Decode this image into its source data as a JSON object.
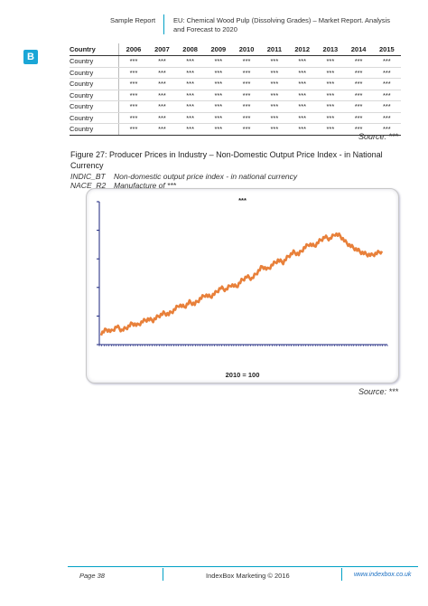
{
  "header": {
    "left": "Sample Report",
    "right_line1": "EU: Chemical Wood Pulp (Dissolving Grades) – Market Report. Analysis",
    "right_line2": "and Forecast to 2020"
  },
  "logo_text": "B",
  "table": {
    "columns": [
      "Country",
      "2006",
      "2007",
      "2008",
      "2009",
      "2010",
      "2011",
      "2012",
      "2013",
      "2014",
      "2015"
    ],
    "rows": [
      [
        "Country",
        "***",
        "***",
        "***",
        "***",
        "***",
        "***",
        "***",
        "***",
        "***",
        "***"
      ],
      [
        "Country",
        "***",
        "***",
        "***",
        "***",
        "***",
        "***",
        "***",
        "***",
        "***",
        "***"
      ],
      [
        "Country",
        "***",
        "***",
        "***",
        "***",
        "***",
        "***",
        "***",
        "***",
        "***",
        "***"
      ],
      [
        "Country",
        "***",
        "***",
        "***",
        "***",
        "***",
        "***",
        "***",
        "***",
        "***",
        "***"
      ],
      [
        "Country",
        "***",
        "***",
        "***",
        "***",
        "***",
        "***",
        "***",
        "***",
        "***",
        "***"
      ],
      [
        "Country",
        "***",
        "***",
        "***",
        "***",
        "***",
        "***",
        "***",
        "***",
        "***",
        "***"
      ],
      [
        "Country",
        "***",
        "***",
        "***",
        "***",
        "***",
        "***",
        "***",
        "***",
        "***",
        "***"
      ]
    ]
  },
  "source1": "Source:  ***",
  "figure_caption": "Figure 27: Producer Prices in Industry – Non-Domestic Output Price Index - in National Currency",
  "meta": {
    "k1": "INDIC_BT",
    "v1": "Non-domestic output price index - in national currency",
    "k2": "NACE_R2",
    "v2": "Manufacture of ***"
  },
  "chart_data": {
    "type": "line",
    "title": "***",
    "xlabel": "2010 = 100",
    "ylabel": "",
    "line_color": "#e8803a",
    "series": [
      {
        "values": [
          2,
          6,
          4,
          9,
          5,
          8,
          12,
          10,
          14,
          16,
          15,
          19,
          22,
          21,
          25,
          30,
          28,
          33,
          31,
          36,
          40,
          38,
          42,
          47,
          45,
          50,
          48,
          54,
          58,
          56,
          62,
          68,
          65,
          70,
          74,
          72,
          78,
          82,
          80,
          86,
          90,
          88,
          93,
          97,
          95,
          100,
          98,
          92,
          88,
          85,
          82,
          80,
          79,
          81,
          83
        ]
      }
    ],
    "ylim": [
      0,
      105
    ]
  },
  "source2": "Source:  ***",
  "footer": {
    "page": "Page 38",
    "center": "IndexBox Marketing © 2016",
    "url": "www.indexbox.co.uk"
  }
}
